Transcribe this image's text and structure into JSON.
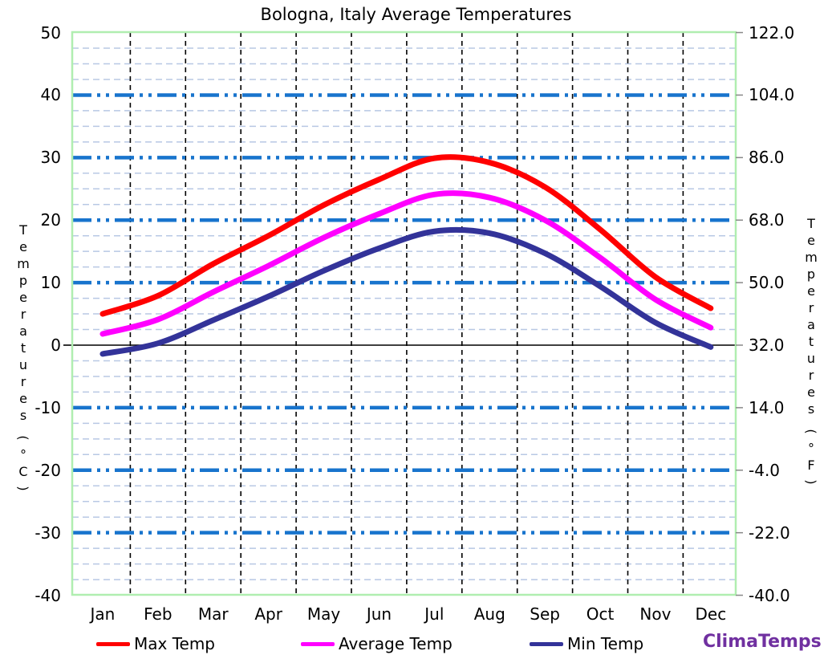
{
  "chart": {
    "title": "Bologna, Italy Average Temperatures",
    "brand": "ClimaTemps",
    "brand_color": "#7030a0",
    "left_axis": {
      "title": "Temperatures (°C)",
      "title_word": "Temperatures",
      "title_unit": "(°C)",
      "ticks": [
        "50",
        "40",
        "30",
        "20",
        "10",
        "0",
        "-10",
        "-20",
        "-30",
        "-40"
      ]
    },
    "right_axis": {
      "title": "Temperatures (°F)",
      "title_word": "Temperatures",
      "title_unit": "(°F)",
      "ticks": [
        "122.0",
        "104.0",
        "86.0",
        "68.0",
        "50.0",
        "32.0",
        "14.0",
        "-4.0",
        "-22.0",
        "-40.0"
      ]
    },
    "legend": [
      {
        "label": "Max Temp",
        "color": "#ff0000"
      },
      {
        "label": "Average Temp",
        "color": "#ff00ff"
      },
      {
        "label": "Min Temp",
        "color": "#333399"
      }
    ],
    "grid_colors": {
      "major_horizontal": "#1874cd",
      "minor_horizontal": "#b8c8e4",
      "vertical": "#000000",
      "zero_line": "#000000",
      "frame": "#b0eeb0",
      "right_tick": "#888888"
    }
  },
  "chart_data": {
    "type": "line",
    "title": "Bologna, Italy Average Temperatures",
    "categories": [
      "Jan",
      "Feb",
      "Mar",
      "Apr",
      "May",
      "Jun",
      "Jul",
      "Aug",
      "Sep",
      "Oct",
      "Nov",
      "Dec"
    ],
    "ylabel_left": "Temperatures (°C)",
    "ylabel_right": "Temperatures (°F)",
    "ylim_celsius": [
      -40,
      50
    ],
    "yticks_celsius": [
      50,
      40,
      30,
      20,
      10,
      0,
      -10,
      -20,
      -30,
      -40
    ],
    "yticks_fahrenheit": [
      122.0,
      104.0,
      86.0,
      68.0,
      50.0,
      32.0,
      14.0,
      -4.0,
      -22.0,
      -40.0
    ],
    "grid": "major blue dash-dot lines every 10°C, light-blue minor dashes every 2.5°C, black dashed vertical lines at month boundaries, solid black zero line",
    "legend_position": "bottom",
    "series": [
      {
        "name": "Max Temp",
        "color": "#ff0000",
        "values": [
          5.0,
          7.9,
          13.0,
          17.5,
          22.4,
          26.5,
          29.9,
          29.2,
          25.3,
          18.5,
          10.9,
          5.9
        ]
      },
      {
        "name": "Average Temp",
        "color": "#ff00ff",
        "values": [
          1.8,
          4.1,
          8.5,
          12.7,
          17.2,
          21.0,
          24.1,
          23.6,
          20.0,
          14.0,
          7.3,
          2.8
        ]
      },
      {
        "name": "Min Temp",
        "color": "#333399",
        "values": [
          -1.4,
          0.3,
          4.0,
          7.8,
          11.9,
          15.5,
          18.2,
          17.9,
          14.7,
          9.4,
          3.6,
          -0.3
        ]
      }
    ]
  }
}
